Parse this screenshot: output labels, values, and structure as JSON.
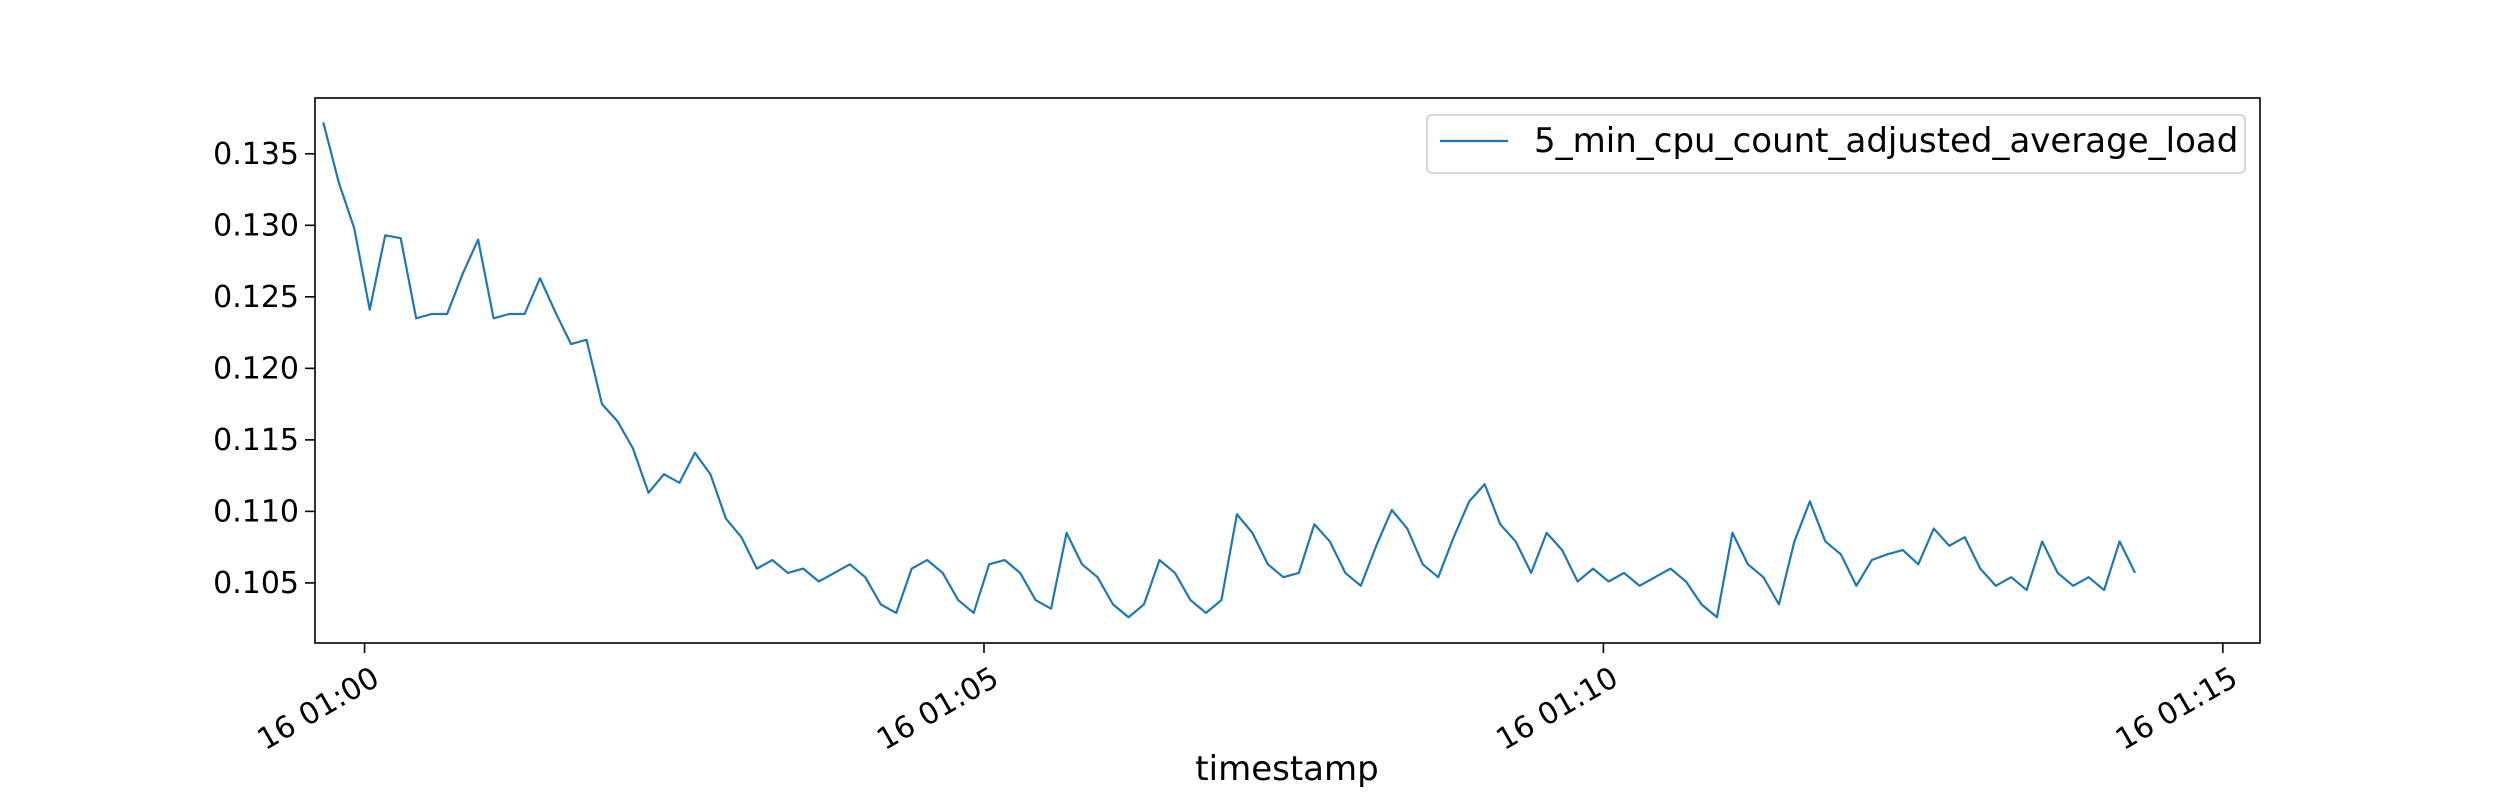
{
  "chart_data": {
    "type": "line",
    "title": "",
    "xlabel": "timestamp",
    "ylabel": "",
    "x_start": "16 00:59:40",
    "x_step_seconds": 7.5,
    "xlim_minutes": [
      -0.4,
      15.3
    ],
    "ylim": [
      0.1008,
      0.1389
    ],
    "x_ticks": [
      {
        "minute": 0,
        "label": "16 01:00"
      },
      {
        "minute": 5,
        "label": "16 01:05"
      },
      {
        "minute": 10,
        "label": "16 01:10"
      },
      {
        "minute": 15,
        "label": "16 01:15"
      }
    ],
    "y_ticks": [
      {
        "value": 0.105,
        "label": "0.105"
      },
      {
        "value": 0.11,
        "label": "0.110"
      },
      {
        "value": 0.115,
        "label": "0.115"
      },
      {
        "value": 0.12,
        "label": "0.120"
      },
      {
        "value": 0.125,
        "label": "0.125"
      },
      {
        "value": 0.13,
        "label": "0.130"
      },
      {
        "value": 0.135,
        "label": "0.135"
      }
    ],
    "grid": false,
    "legend_position": "top-right",
    "series": [
      {
        "name": "5_min_cpu_count_adjusted_average_load",
        "color": "#1f77b4",
        "values": [
          0.1372,
          0.133,
          0.1298,
          0.1241,
          0.1293,
          0.1291,
          0.1235,
          0.1238,
          0.1238,
          0.1266,
          0.129,
          0.1235,
          0.1238,
          0.1238,
          0.1263,
          0.1239,
          0.1217,
          0.122,
          0.1175,
          0.1163,
          0.1144,
          0.1113,
          0.1126,
          0.112,
          0.1141,
          0.1126,
          0.1095,
          0.1082,
          0.106,
          0.1066,
          0.1057,
          0.106,
          0.1051,
          0.1057,
          0.1063,
          0.1054,
          0.1035,
          0.1029,
          0.106,
          0.1066,
          0.1057,
          0.1038,
          0.1029,
          0.1063,
          0.1066,
          0.1057,
          0.1038,
          0.1032,
          0.1085,
          0.1063,
          0.1054,
          0.1035,
          0.1026,
          0.1035,
          0.1066,
          0.1057,
          0.1038,
          0.1029,
          0.1038,
          0.1098,
          0.1085,
          0.1063,
          0.1054,
          0.1057,
          0.1091,
          0.1079,
          0.1057,
          0.1048,
          0.1076,
          0.1101,
          0.1088,
          0.1063,
          0.1054,
          0.1082,
          0.1107,
          0.1119,
          0.1091,
          0.1079,
          0.1057,
          0.1085,
          0.1073,
          0.1051,
          0.106,
          0.1051,
          0.1057,
          0.1048,
          0.1054,
          0.106,
          0.1051,
          0.1035,
          0.1026,
          0.1085,
          0.1063,
          0.1054,
          0.1035,
          0.1079,
          0.1107,
          0.1079,
          0.107,
          0.1048,
          0.1066,
          0.107,
          0.1073,
          0.1063,
          0.1088,
          0.1076,
          0.1082,
          0.106,
          0.1048,
          0.1054,
          0.1045,
          0.1079,
          0.1057,
          0.1048,
          0.1054,
          0.1045,
          0.1079,
          0.1057
        ]
      }
    ]
  }
}
